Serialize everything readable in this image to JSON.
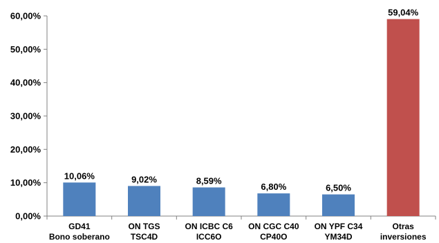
{
  "chart_data": {
    "type": "bar",
    "categories": [
      [
        "GD41",
        "Bono soberano"
      ],
      [
        "ON TGS",
        "TSC4D"
      ],
      [
        "ON ICBC C6",
        "ICC6O"
      ],
      [
        "ON CGC C40",
        "CP40O"
      ],
      [
        "ON YPF C34",
        "YM34D"
      ],
      [
        "Otras",
        "inversiones"
      ]
    ],
    "values": [
      10.06,
      9.02,
      8.59,
      6.8,
      6.5,
      59.04
    ],
    "value_labels": [
      "10,06%",
      "9,02%",
      "8,59%",
      "6,80%",
      "6,50%",
      "59,04%"
    ],
    "bar_colors": [
      "#4f81bd",
      "#4f81bd",
      "#4f81bd",
      "#4f81bd",
      "#4f81bd",
      "#c0504d"
    ],
    "ylim": [
      0,
      60
    ],
    "y_ticks": [
      0,
      10,
      20,
      30,
      40,
      50,
      60
    ],
    "y_tick_labels": [
      "0,00%",
      "10,00%",
      "20,00%",
      "30,00%",
      "40,00%",
      "50,00%",
      "60,00%"
    ],
    "grid": false,
    "title": "",
    "xlabel": "",
    "ylabel": ""
  }
}
